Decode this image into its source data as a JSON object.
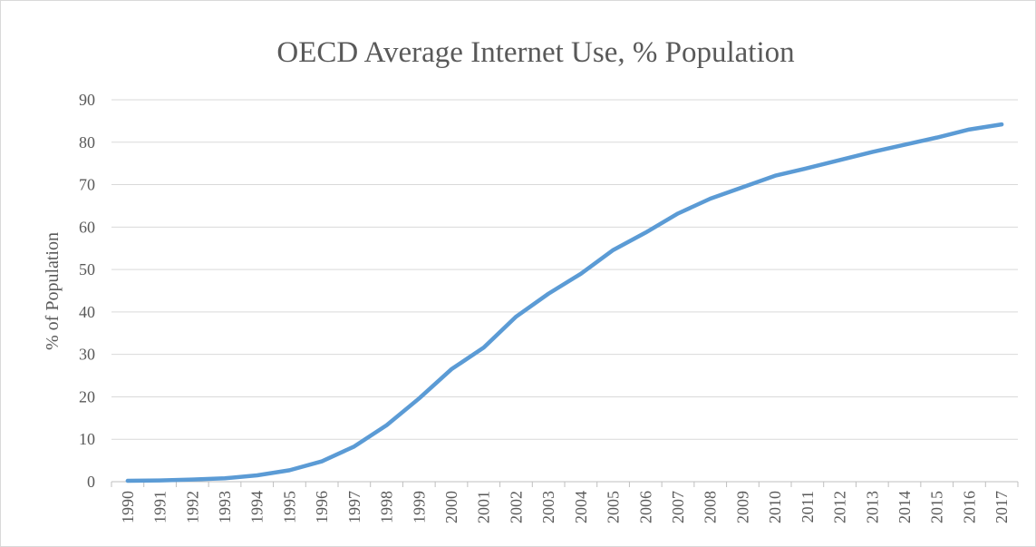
{
  "chart_data": {
    "type": "line",
    "title": "OECD Average Internet Use, % Population",
    "xlabel": "",
    "ylabel": "% of Population",
    "x": [
      "1990",
      "1991",
      "1992",
      "1993",
      "1994",
      "1995",
      "1996",
      "1997",
      "1998",
      "1999",
      "2000",
      "2001",
      "2002",
      "2003",
      "2004",
      "2005",
      "2006",
      "2007",
      "2008",
      "2009",
      "2010",
      "2011",
      "2012",
      "2013",
      "2014",
      "2015",
      "2016",
      "2017"
    ],
    "series": [
      {
        "values": [
          0.2,
          0.3,
          0.5,
          0.8,
          1.5,
          2.7,
          4.8,
          8.3,
          13.3,
          19.6,
          26.5,
          31.6,
          38.9,
          44.3,
          49.0,
          54.6,
          58.7,
          63.2,
          66.7,
          69.4,
          72.1,
          73.9,
          75.8,
          77.7,
          79.4,
          81.1,
          83.0,
          84.2
        ],
        "color": "#5b9bd5"
      }
    ],
    "yticks": [
      "0",
      "10",
      "20",
      "30",
      "40",
      "50",
      "60",
      "70",
      "80",
      "90"
    ],
    "ylim": [
      0,
      90
    ],
    "grid": true,
    "legend": "none"
  }
}
